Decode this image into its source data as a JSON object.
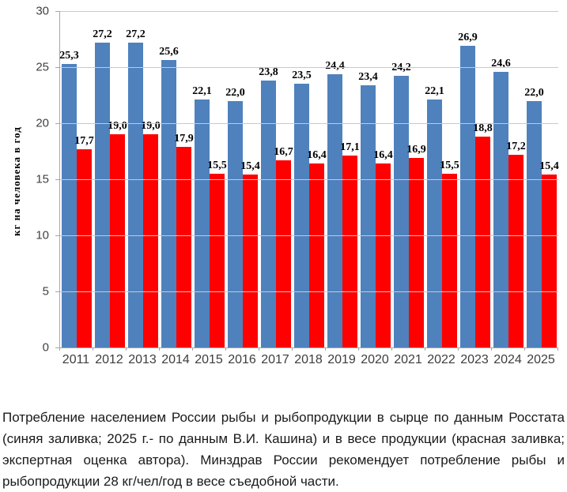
{
  "chart_data": {
    "type": "bar",
    "title": "",
    "xlabel": "",
    "ylabel": "кг на человека в год",
    "ylim": [
      0,
      30
    ],
    "yticks": [
      0,
      5,
      10,
      15,
      20,
      25,
      30
    ],
    "grid": true,
    "legend": "none",
    "categories": [
      "2011",
      "2012",
      "2013",
      "2014",
      "2015",
      "2016",
      "2017",
      "2018",
      "2019",
      "2020",
      "2021",
      "2022",
      "2023",
      "2024",
      "2025"
    ],
    "series": [
      {
        "name": "в сырце по данным Росстата (синяя заливка; 2025 г.- по данным В.И. Кашина)",
        "color": "#4f81bd",
        "values": [
          25.3,
          27.2,
          27.2,
          25.6,
          22.1,
          22.0,
          23.8,
          23.5,
          24.4,
          23.4,
          24.2,
          22.1,
          26.9,
          24.6,
          22.0
        ],
        "labels": [
          "25,3",
          "27,2",
          "27,2",
          "25,6",
          "22,1",
          "22,0",
          "23,8",
          "23,5",
          "24,4",
          "23,4",
          "24,2",
          "22,1",
          "26,9",
          "24,6",
          "22,0"
        ]
      },
      {
        "name": "в весе продукции (красная заливка; экспертная оценка автора)",
        "color": "#fe0000",
        "values": [
          17.7,
          19.0,
          19.0,
          17.9,
          15.5,
          15.4,
          16.7,
          16.4,
          17.1,
          16.4,
          16.9,
          15.5,
          18.8,
          17.2,
          15.4
        ],
        "labels": [
          "17,7",
          "19,0",
          "19,0",
          "17,9",
          "15,5",
          "15,4",
          "16,7",
          "16,4",
          "17,1",
          "16,4",
          "16,9",
          "15,5",
          "18,8",
          "17,2",
          "15,4"
        ]
      }
    ]
  },
  "caption": {
    "text": "Потребление населением России рыбы и рыбопродукции в сырце по данным Росстата (синяя заливка; 2025 г.- по данным В.И. Кашина) и в весе продукции (красная заливка; экспертная оценка автора). Минздрав России рекомендует потребление рыбы и рыбопродукции 28 кг/чел/год в весе съедобной части."
  },
  "colors": {
    "bar_blue": "#4f81bd",
    "bar_red": "#fe0000",
    "gridline": "#c9c9c9",
    "axis": "#a6a6a6",
    "tick_text": "#404040",
    "label_text": "#000000"
  }
}
